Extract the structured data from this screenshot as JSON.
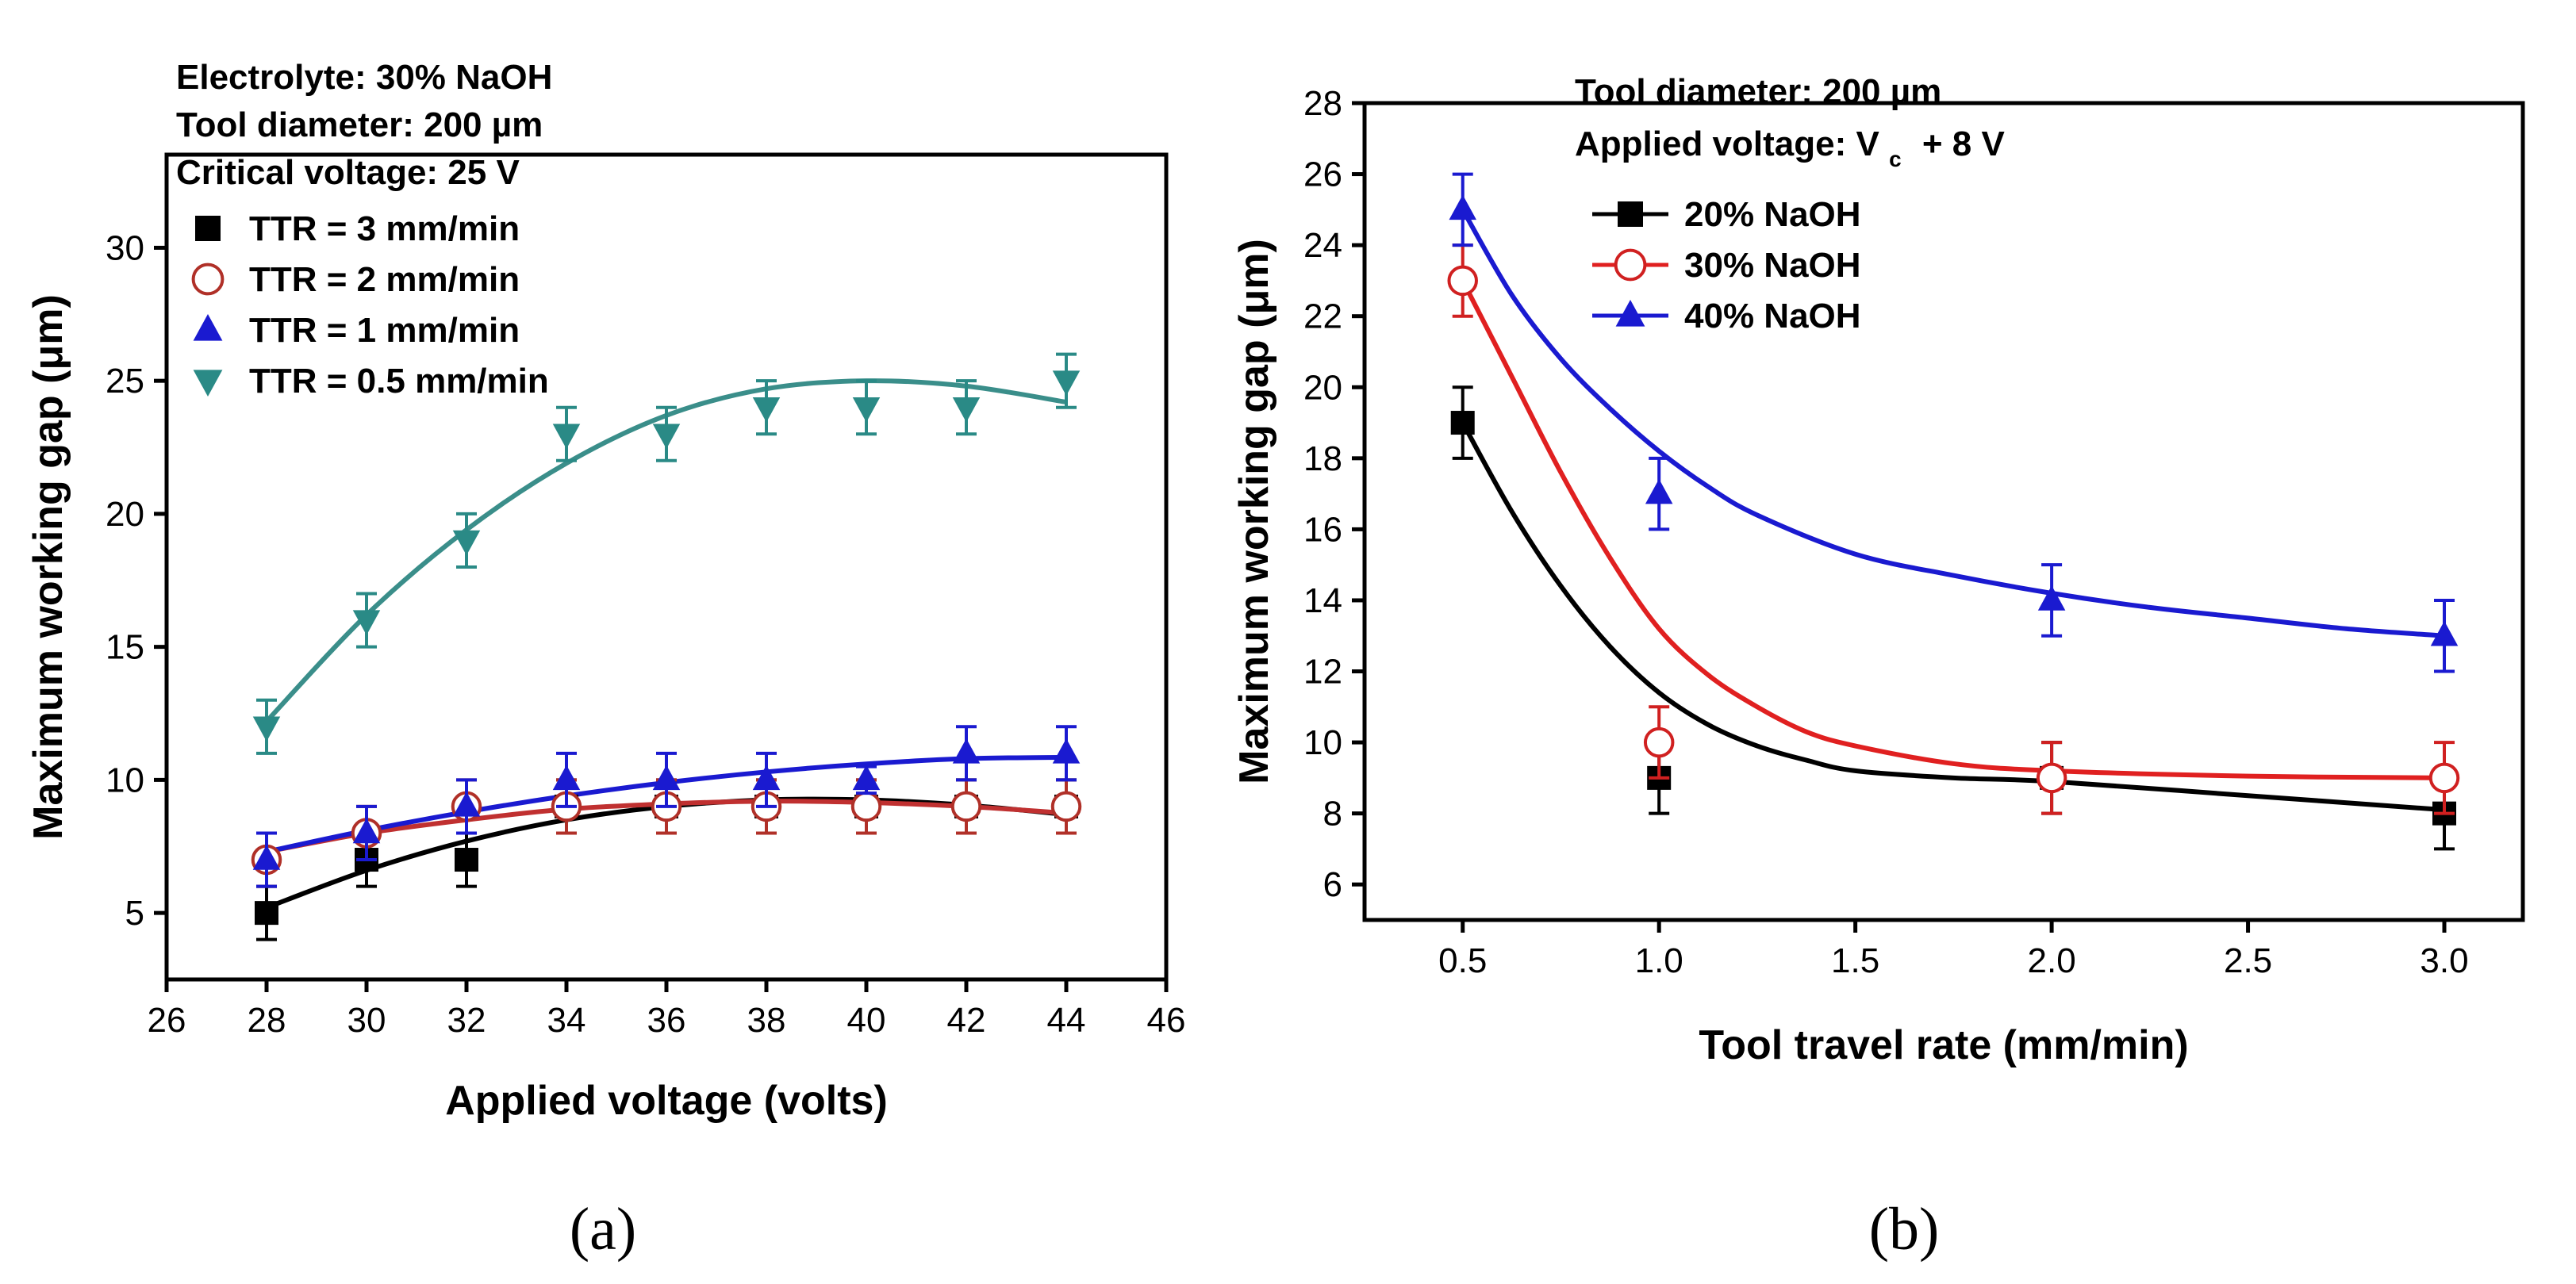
{
  "chart_data": [
    {
      "type": "scatter",
      "panel_label": "a",
      "title": "",
      "xlabel": "Applied voltage (volts)",
      "ylabel": "Maximum working gap (μm)",
      "xlim": [
        26,
        46
      ],
      "ylim": [
        2.5,
        33.5
      ],
      "xticks": [
        26,
        28,
        30,
        32,
        34,
        36,
        38,
        40,
        42,
        44,
        46
      ],
      "yticks": [
        5,
        10,
        15,
        20,
        25,
        30
      ],
      "annotations": [
        "Electrolyte: 30% NaOH",
        "Tool diameter: 200 µm",
        "Critical voltage: 25 V"
      ],
      "legend_position": "top-left",
      "series": [
        {
          "name": "TTR = 3 mm/min",
          "marker": "square",
          "color": "#000000",
          "fit_color": "#000000",
          "x": [
            28,
            30,
            32,
            34,
            36,
            38,
            40,
            42,
            44
          ],
          "y": [
            5,
            7,
            7,
            9,
            9,
            9,
            9,
            9,
            9
          ],
          "err": [
            1,
            1,
            1,
            1,
            1,
            1,
            1,
            1,
            1
          ],
          "fit_x": [
            28,
            30,
            32,
            34,
            36,
            38,
            40,
            42,
            44
          ],
          "fit_y": [
            5.2,
            6.6,
            7.7,
            8.5,
            9.0,
            9.25,
            9.25,
            9.05,
            8.7
          ]
        },
        {
          "name": "TTR = 2 mm/min",
          "marker": "open-circle",
          "color": "#b03028",
          "fit_color": "#c03030",
          "x": [
            28,
            30,
            32,
            34,
            36,
            38,
            40,
            42,
            44
          ],
          "y": [
            7,
            8,
            9,
            9,
            9,
            9,
            9,
            9,
            9
          ],
          "err": [
            1,
            1,
            1,
            1,
            1,
            1,
            1,
            1,
            1
          ],
          "fit_x": [
            28,
            30,
            32,
            34,
            36,
            38,
            40,
            42,
            44
          ],
          "fit_y": [
            7.3,
            8.0,
            8.5,
            8.9,
            9.1,
            9.2,
            9.15,
            9.0,
            8.75
          ]
        },
        {
          "name": "TTR = 1 mm/min",
          "marker": "triangle-up",
          "color": "#1a1ad0",
          "fit_color": "#1a1ad0",
          "x": [
            28,
            30,
            32,
            34,
            36,
            38,
            40,
            42,
            44
          ],
          "y": [
            7,
            8,
            9,
            10,
            10,
            10,
            10,
            11,
            11
          ],
          "err": [
            1,
            1,
            1,
            1,
            1,
            1,
            0.5,
            1,
            1
          ],
          "fit_x": [
            28,
            30,
            32,
            34,
            36,
            38,
            40,
            42,
            44
          ],
          "fit_y": [
            7.3,
            8.1,
            8.8,
            9.4,
            9.9,
            10.3,
            10.6,
            10.8,
            10.85
          ]
        },
        {
          "name": "TTR = 0.5 mm/min",
          "marker": "triangle-down",
          "color": "#2a8a86",
          "fit_color": "#3a8e8a",
          "x": [
            28,
            30,
            32,
            34,
            36,
            38,
            40,
            42,
            44
          ],
          "y": [
            12,
            16,
            19,
            23,
            23,
            24,
            24,
            24,
            25
          ],
          "err": [
            1,
            1,
            1,
            1,
            1,
            1,
            1,
            1,
            1
          ],
          "fit_x": [
            28,
            30,
            32,
            34,
            36,
            38,
            40,
            42,
            44
          ],
          "fit_y": [
            12.2,
            16.2,
            19.4,
            21.9,
            23.7,
            24.7,
            25.0,
            24.8,
            24.2
          ]
        }
      ]
    },
    {
      "type": "scatter",
      "panel_label": "b",
      "title": "",
      "xlabel": "Tool travel rate (mm/min)",
      "ylabel": "Maximum working gap (μm)",
      "xlim": [
        0.25,
        3.2
      ],
      "ylim": [
        5,
        28
      ],
      "xticks": [
        "0.5",
        "1.0",
        "1.5",
        "2.0",
        "2.5",
        "3.0"
      ],
      "yticks": [
        6,
        8,
        10,
        12,
        14,
        16,
        18,
        20,
        22,
        24,
        26,
        28
      ],
      "annotations": [
        "Tool diameter: 200 µm",
        "Applied voltage: V",
        "c",
        "+ 8 V"
      ],
      "legend_position": "top-left",
      "series": [
        {
          "name": "20% NaOH",
          "marker": "square",
          "color": "#000000",
          "fit_color": "#000000",
          "x": [
            0.5,
            1.0,
            2.0,
            3.0
          ],
          "y": [
            19,
            9,
            9,
            8
          ],
          "err": [
            1,
            1,
            1,
            1
          ],
          "fit_x": [
            0.5,
            0.625,
            0.75,
            0.875,
            1.0,
            1.125,
            1.25,
            1.375,
            1.5,
            1.75,
            2.0,
            2.5,
            3.0
          ],
          "fit_y": [
            19.0,
            16.5,
            14.4,
            12.7,
            11.4,
            10.5,
            9.9,
            9.5,
            9.2,
            9.0,
            8.9,
            8.5,
            8.1
          ]
        },
        {
          "name": "30% NaOH",
          "marker": "open-circle",
          "color": "#d02020",
          "fit_color": "#e02020",
          "x": [
            0.5,
            1.0,
            2.0,
            3.0
          ],
          "y": [
            23,
            10,
            9,
            9
          ],
          "err": [
            1,
            1,
            1,
            1
          ],
          "fit_x": [
            0.5,
            0.625,
            0.75,
            0.875,
            1.0,
            1.125,
            1.25,
            1.375,
            1.5,
            1.75,
            2.0,
            2.5,
            3.0
          ],
          "fit_y": [
            23.0,
            20.3,
            17.6,
            15.2,
            13.2,
            11.9,
            11.0,
            10.3,
            9.9,
            9.4,
            9.2,
            9.05,
            9.0
          ]
        },
        {
          "name": "40% NaOH",
          "marker": "triangle-up",
          "color": "#1a1ad0",
          "fit_color": "#1a1ad0",
          "x": [
            0.5,
            1.0,
            2.0,
            3.0
          ],
          "y": [
            25,
            17,
            14,
            13
          ],
          "err": [
            1,
            1,
            1,
            1
          ],
          "fit_x": [
            0.5,
            0.625,
            0.75,
            0.875,
            1.0,
            1.125,
            1.25,
            1.5,
            1.75,
            2.0,
            2.25,
            2.5,
            2.75,
            3.0
          ],
          "fit_y": [
            25.0,
            22.6,
            20.8,
            19.4,
            18.2,
            17.2,
            16.4,
            15.3,
            14.7,
            14.2,
            13.8,
            13.5,
            13.2,
            13.0
          ]
        }
      ]
    }
  ],
  "captions": {
    "a": "(a)",
    "b": "(b)"
  }
}
